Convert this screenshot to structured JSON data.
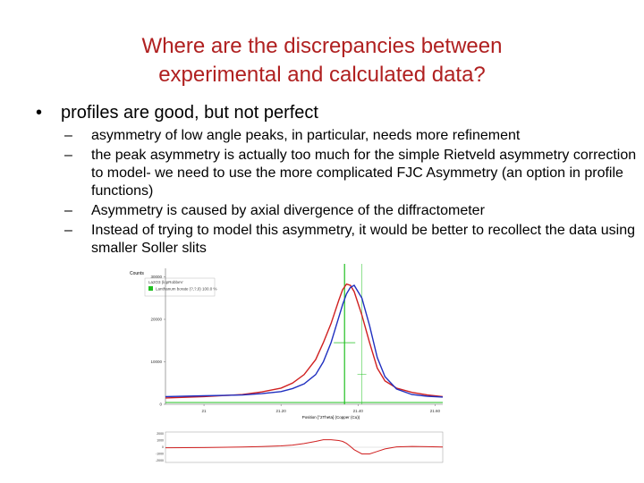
{
  "slide": {
    "title_line1": "Where are the discrepancies between",
    "title_line2": "experimental and calculated data?",
    "bullet": "profiles are good, but not perfect",
    "bullet_marker": "•",
    "sub_marker": "–",
    "sub_items": [
      "asymmetry of low angle peaks, in particular, needs more refinement",
      "the peak asymmetry is actually too much for the simple Rietveld asymmetry correction to model- we need to use the more complicated FJC Asymmetry (an option in profile functions)",
      "Asymmetry is caused by axial divergence of the diffractometer",
      "Instead of trying to model this asymmetry, it would be better to recollect the data using smaller Soller slits"
    ]
  },
  "colors": {
    "title": "#b02020",
    "observed": "#d02020",
    "calculated": "#2030c0",
    "difference": "#d02020",
    "reflection_marker": "#20c020"
  },
  "chart_data": {
    "type": "line",
    "ylabel": "Counts",
    "xlabel": "Position [°2Theta] (Copper (Cu))",
    "legend": [
      "La2O3 (lopRobbeV",
      "Lanthanum borate (?,?,0) 100.0 %"
    ],
    "legend_placement": "top-left",
    "xlim": [
      20.9,
      21.62
    ],
    "ylim": [
      0,
      32000
    ],
    "x_ticks": [
      "21",
      "21.20",
      "21.40",
      "21.60"
    ],
    "x_tick_values": [
      21.0,
      21.2,
      21.4,
      21.6
    ],
    "y_ticks": [
      "0",
      "10000",
      "20000",
      "30000"
    ],
    "y_tick_values": [
      0,
      10000,
      20000,
      30000
    ],
    "series": [
      {
        "x": [
          20.9,
          21.0,
          21.1,
          21.15,
          21.2,
          21.23,
          21.26,
          21.29,
          21.31,
          21.33,
          21.35,
          21.36,
          21.37,
          21.38,
          21.39,
          21.41,
          21.43,
          21.45,
          21.47,
          21.5,
          21.54,
          21.58,
          21.62
        ],
        "y": [
          1500,
          1800,
          2300,
          2900,
          3800,
          5000,
          7000,
          10500,
          14500,
          19000,
          24500,
          27000,
          28300,
          28000,
          26500,
          21000,
          14500,
          8500,
          5500,
          3800,
          2800,
          2200,
          1800
        ]
      },
      {
        "x": [
          20.9,
          21.0,
          21.1,
          21.15,
          21.2,
          21.23,
          21.26,
          21.29,
          21.31,
          21.33,
          21.35,
          21.36,
          21.37,
          21.38,
          21.39,
          21.41,
          21.43,
          21.45,
          21.47,
          21.5,
          21.54,
          21.58,
          21.62
        ],
        "y": [
          1800,
          2000,
          2200,
          2500,
          3000,
          3700,
          4800,
          7000,
          10000,
          14500,
          20500,
          23500,
          26000,
          27500,
          28000,
          25000,
          18500,
          11000,
          6500,
          3600,
          2300,
          1900,
          1700
        ]
      }
    ],
    "reflections_x": [
      21.365,
      21.41
    ],
    "difference_ticks": [
      "2000",
      "1000",
      "0",
      "-1000",
      "-2000"
    ]
  }
}
